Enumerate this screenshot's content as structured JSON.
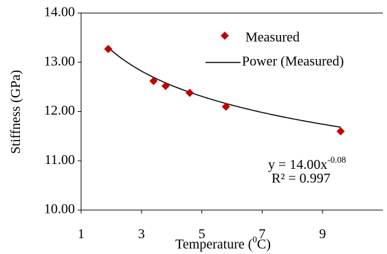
{
  "chart_data": {
    "type": "scatter",
    "title": "",
    "xlabel_main": "Temperature (",
    "xlabel_sup": "0",
    "xlabel_tail": "C)",
    "ylabel": "Stiffness (GPa)",
    "xlim": [
      1,
      11
    ],
    "ylim": [
      10,
      14
    ],
    "x_ticks": [
      1,
      3,
      5,
      7,
      9
    ],
    "y_ticks": [
      "10.00",
      "11.00",
      "12.00",
      "13.00",
      "14.00"
    ],
    "grid": false,
    "legend_position": "top-right",
    "series": [
      {
        "name": "Measured",
        "kind": "markers",
        "marker": "diamond",
        "color": "#c00000",
        "x": [
          1.9,
          3.4,
          3.8,
          4.6,
          5.8,
          9.6
        ],
        "y": [
          13.27,
          12.62,
          12.52,
          12.38,
          12.1,
          11.6
        ]
      },
      {
        "name": "Power (Measured)",
        "kind": "trendline",
        "color": "#000000",
        "x_range": [
          1.9,
          9.6
        ],
        "coef": 14.0,
        "exponent": -0.08
      }
    ],
    "equation": {
      "lhs": "y = 14.00x",
      "exponent": "-0.08",
      "r2": "R² = 0.997"
    }
  }
}
